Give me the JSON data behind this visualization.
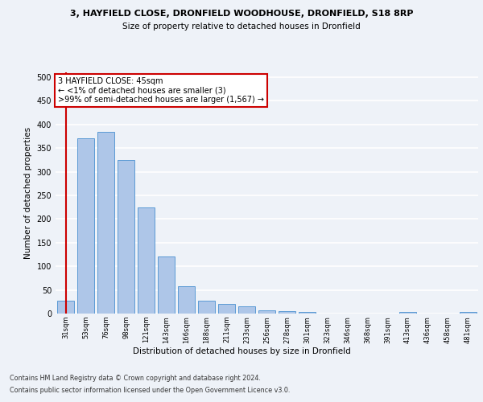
{
  "title1": "3, HAYFIELD CLOSE, DRONFIELD WOODHOUSE, DRONFIELD, S18 8RP",
  "title2": "Size of property relative to detached houses in Dronfield",
  "xlabel": "Distribution of detached houses by size in Dronfield",
  "ylabel": "Number of detached properties",
  "categories": [
    "31sqm",
    "53sqm",
    "76sqm",
    "98sqm",
    "121sqm",
    "143sqm",
    "166sqm",
    "188sqm",
    "211sqm",
    "233sqm",
    "256sqm",
    "278sqm",
    "301sqm",
    "323sqm",
    "346sqm",
    "368sqm",
    "391sqm",
    "413sqm",
    "436sqm",
    "458sqm",
    "481sqm"
  ],
  "values": [
    28,
    370,
    385,
    325,
    225,
    120,
    58,
    28,
    20,
    15,
    6,
    5,
    4,
    0,
    0,
    0,
    0,
    4,
    0,
    0,
    4
  ],
  "bar_color": "#aec6e8",
  "bar_edge_color": "#5b9bd5",
  "annotation_box_text": "3 HAYFIELD CLOSE: 45sqm\n← <1% of detached houses are smaller (3)\n>99% of semi-detached houses are larger (1,567) →",
  "ylim": [
    0,
    510
  ],
  "yticks": [
    0,
    50,
    100,
    150,
    200,
    250,
    300,
    350,
    400,
    450,
    500
  ],
  "footer1": "Contains HM Land Registry data © Crown copyright and database right 2024.",
  "footer2": "Contains public sector information licensed under the Open Government Licence v3.0.",
  "bg_color": "#eef2f8",
  "grid_color": "#ffffff",
  "annotation_box_color": "#ffffff",
  "annotation_box_edge_color": "#cc0000",
  "red_line_color": "#cc0000"
}
